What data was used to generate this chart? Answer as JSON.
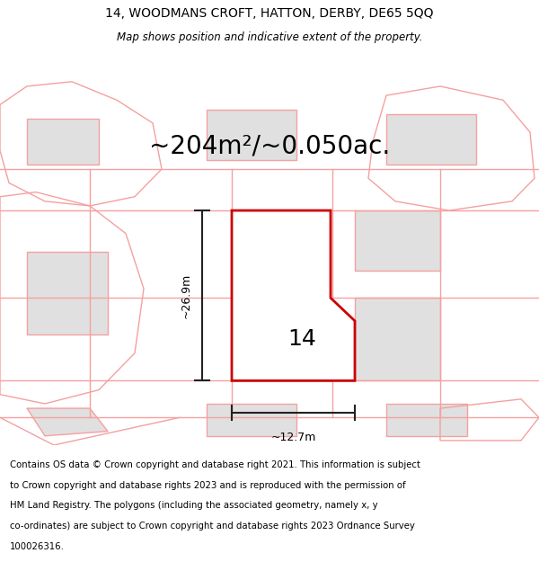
{
  "title_line1": "14, WOODMANS CROFT, HATTON, DERBY, DE65 5QQ",
  "title_line2": "Map shows position and indicative extent of the property.",
  "area_label": "~204m²/~0.050ac.",
  "width_label": "~12.7m",
  "height_label": "~26.9m",
  "property_number": "14",
  "footer_lines": [
    "Contains OS data © Crown copyright and database right 2021. This information is subject",
    "to Crown copyright and database rights 2023 and is reproduced with the permission of",
    "HM Land Registry. The polygons (including the associated geometry, namely x, y",
    "co-ordinates) are subject to Crown copyright and database rights 2023 Ordnance Survey",
    "100026316."
  ],
  "bg_color": "#ffffff",
  "plot_color_fill": "#ffffff",
  "plot_color_edge": "#cc0000",
  "bg_polygon_fill": "#e0e0e0",
  "bg_polygon_edge": "#f5a0a0",
  "dim_color": "#222222",
  "footer_bg": "#f0f0f0",
  "map_xlim": [
    0,
    600
  ],
  "map_ylim": [
    0,
    430
  ]
}
